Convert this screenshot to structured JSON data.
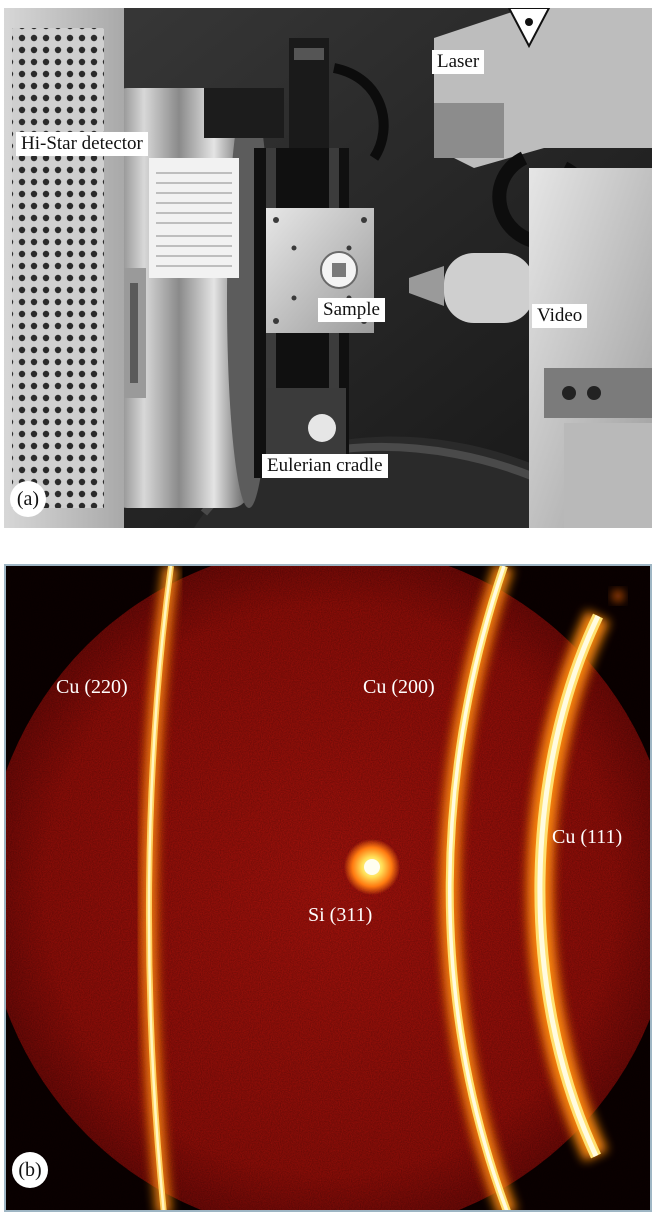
{
  "panel_a": {
    "letter": "(a)",
    "labels": {
      "detector": "Hi-Star detector",
      "laser": "Laser",
      "sample": "Sample",
      "video": "Video",
      "cradle": "Eulerian cradle"
    }
  },
  "panel_b": {
    "letter": "(b)",
    "labels": {
      "cu220": "Cu (220)",
      "cu200": "Cu (200)",
      "cu111": "Cu (111)",
      "si311": "Si (311)"
    }
  },
  "colors": {
    "diffraction_bg": "#a8110b",
    "ring_core": "#fff6c0",
    "ring_glow": "#ff8a10",
    "frame_border": "#9fb6c4"
  }
}
